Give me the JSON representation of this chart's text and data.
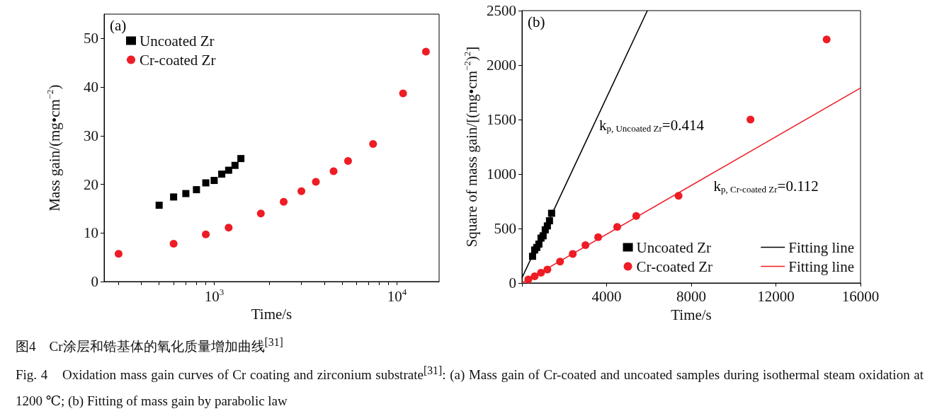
{
  "chart_data": [
    {
      "type": "scatter",
      "title": "图4　Cr涂层和锆基体的氧化质量增加曲线$^{[31]}$",
      "subtitle": "Fig. 4　Oxidation mass gain curves of Cr coating and zirconium substrate$^{[31]}$: (a) Mass gain of Cr-coated and uncoated samples during isothermal steam oxidation at 1200 ℃; (b) Fitting of mass gain by parabolic law",
      "xlabel": "Time/s",
      "ylabel": "Mass gain/(mg•cm$^{−2}$)",
      "log": "x",
      "grid": false,
      "legend": "top left",
      "xlim": [
        250,
        17000
      ],
      "xticks": [
        {
          "value": 300,
          "label": null
        },
        {
          "value": 400,
          "label": null
        },
        {
          "value": 500,
          "label": null
        },
        {
          "value": 600,
          "label": null
        },
        {
          "value": 700,
          "label": null
        },
        {
          "value": 800,
          "label": null
        },
        {
          "value": 900,
          "label": null
        },
        {
          "value": 1000,
          "label": "10$^{3}$"
        },
        {
          "value": 2000,
          "label": null
        },
        {
          "value": 3000,
          "label": null
        },
        {
          "value": 4000,
          "label": null
        },
        {
          "value": 5000,
          "label": null
        },
        {
          "value": 6000,
          "label": null
        },
        {
          "value": 7000,
          "label": null
        },
        {
          "value": 8000,
          "label": null
        },
        {
          "value": 9000,
          "label": null
        },
        {
          "value": 10000,
          "label": "10$^{4}$"
        }
      ],
      "ylim": [
        0,
        55
      ],
      "yticks": [
        0,
        10,
        20,
        30,
        40,
        50
      ],
      "annotations": [
        "(a)"
      ],
      "series": [
        {
          "name": "Uncoated Zr",
          "color": "#000000",
          "marker": "square",
          "x": [
            500,
            600,
            700,
            800,
            900,
            1000,
            1100,
            1200,
            1300,
            1400
          ],
          "values": [
            15.7,
            17.4,
            18.1,
            18.9,
            20.3,
            20.8,
            22.1,
            22.9,
            23.9,
            25.3
          ]
        },
        {
          "name": "Cr-coated Zr",
          "color": "#ee1c25",
          "marker": "circle",
          "x": [
            300,
            600,
            900,
            1200,
            1800,
            2400,
            3000,
            3600,
            4500,
            5400,
            7400,
            10800,
            14400
          ],
          "values": [
            5.7,
            7.8,
            9.7,
            11.1,
            14.0,
            16.4,
            18.6,
            20.5,
            22.7,
            24.8,
            28.3,
            38.7,
            47.3
          ]
        }
      ]
    },
    {
      "type": "scatter",
      "xlabel": "Time/s",
      "ylabel": "Square of mass gain/[(mg•cm$^{−2}$)$^{2}$]",
      "grid": false,
      "legend": "bottom right",
      "xlim": [
        0,
        16000
      ],
      "xticks": [
        {
          "value": 0,
          "label": null
        },
        4000,
        8000,
        12000,
        16000
      ],
      "ylim": [
        0,
        2500
      ],
      "yticks": [
        0,
        500,
        1000,
        1500,
        2000,
        2500
      ],
      "annotations": [
        "(b)",
        "k$_{p, Uncoated Zr}$=0.414",
        "k$_{p, Cr-coated Zr}$=0.112"
      ],
      "series": [
        {
          "name": "Uncoated Zr",
          "color": "#000000",
          "marker": "square",
          "x": [
            500,
            600,
            700,
            800,
            900,
            1000,
            1100,
            1200,
            1300,
            1400
          ],
          "values": [
            245,
            303,
            326,
            357,
            412,
            433,
            488,
            524,
            571,
            640
          ]
        },
        {
          "name": "Cr-coated Zr",
          "color": "#ee1c25",
          "marker": "circle",
          "x": [
            300,
            600,
            900,
            1200,
            1800,
            2400,
            3000,
            3600,
            4500,
            5400,
            7400,
            10800,
            14400
          ],
          "values": [
            32,
            61,
            94,
            123,
            196,
            267,
            348,
            420,
            515,
            615,
            800,
            1500,
            2235
          ]
        },
        {
          "name": "Fitting line",
          "type": "line",
          "color": "#000000",
          "marker": "none",
          "line_style": "solid",
          "x": [
            0,
            5925
          ],
          "values": [
            47,
            2500
          ]
        },
        {
          "name": "Fitting line",
          "type": "line",
          "color": "#ee1c25",
          "marker": "none",
          "line_style": "solid",
          "x": [
            0,
            16000
          ],
          "values": [
            0,
            1790
          ]
        }
      ]
    }
  ]
}
